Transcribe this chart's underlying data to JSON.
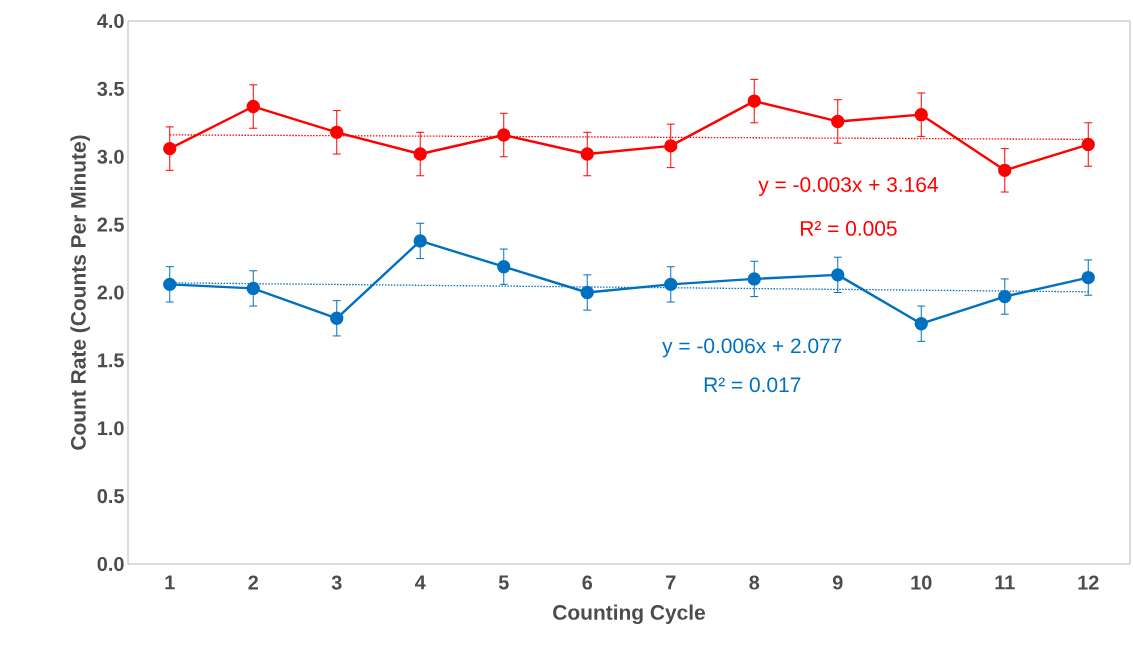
{
  "chart_data": {
    "type": "line",
    "xlabel": "Counting Cycle",
    "ylabel": "Count Rate (Counts Per Minute)",
    "x": [
      1,
      2,
      3,
      4,
      5,
      6,
      7,
      8,
      9,
      10,
      11,
      12
    ],
    "xlim": [
      0.5,
      12.5
    ],
    "xticks": [
      1,
      2,
      3,
      4,
      5,
      6,
      7,
      8,
      9,
      10,
      11,
      12
    ],
    "ylim": [
      0,
      4
    ],
    "yticks": [
      {
        "value": 0,
        "label": "0.0"
      },
      {
        "value": 0.5,
        "label": "0.5"
      },
      {
        "value": 1,
        "label": "1.0"
      },
      {
        "value": 1.5,
        "label": "1.5"
      },
      {
        "value": 2,
        "label": "2.0"
      },
      {
        "value": 2.5,
        "label": "2.5"
      },
      {
        "value": 3,
        "label": "3.0"
      },
      {
        "value": 3.5,
        "label": "3.5"
      },
      {
        "value": 4,
        "label": "4.0"
      }
    ],
    "marker": "circle",
    "line_style": "solid",
    "grid": false,
    "series": [
      {
        "color": "#ff0000",
        "values": [
          3.06,
          3.37,
          3.18,
          3.02,
          3.16,
          3.02,
          3.08,
          3.41,
          3.26,
          3.31,
          2.9,
          3.09
        ],
        "errors": [
          0.16,
          0.16,
          0.16,
          0.16,
          0.16,
          0.16,
          0.16,
          0.16,
          0.16,
          0.16,
          0.16,
          0.16
        ]
      },
      {
        "color": "#0070c0",
        "values": [
          2.06,
          2.03,
          1.81,
          2.38,
          2.19,
          2.0,
          2.06,
          2.1,
          2.13,
          1.77,
          1.97,
          2.11
        ],
        "errors": [
          0.13,
          0.13,
          0.13,
          0.13,
          0.13,
          0.13,
          0.13,
          0.13,
          0.13,
          0.13,
          0.13,
          0.13
        ]
      },
      {
        "type": "line",
        "color": "#ff0000",
        "values": [
          3.161,
          3.158,
          3.155,
          3.152,
          3.149,
          3.146,
          3.143,
          3.14,
          3.137,
          3.134,
          3.131,
          3.128
        ],
        "marker": "none",
        "line_style": "dotted"
      },
      {
        "type": "line",
        "color": "#0070c0",
        "values": [
          2.071,
          2.065,
          2.059,
          2.053,
          2.047,
          2.041,
          2.035,
          2.029,
          2.023,
          2.017,
          2.011,
          2.005
        ],
        "marker": "none",
        "line_style": "dotted"
      }
    ],
    "annotations": [
      "y = -0.003x + 3.164",
      "R² = 0.005",
      "y = -0.006x + 2.077",
      "R² = 0.017"
    ]
  }
}
